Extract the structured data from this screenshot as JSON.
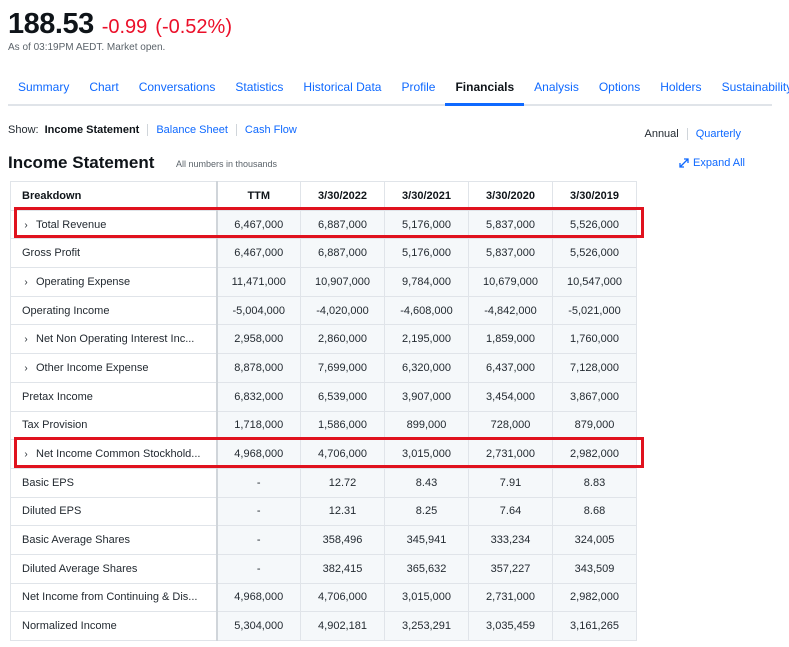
{
  "quote": {
    "price": "188.53",
    "change": "-0.99",
    "change_pct": "(-0.52%)",
    "as_of": "As of 03:19PM AEDT. Market open."
  },
  "tabs": [
    "Summary",
    "Chart",
    "Conversations",
    "Statistics",
    "Historical Data",
    "Profile",
    "Financials",
    "Analysis",
    "Options",
    "Holders",
    "Sustainability"
  ],
  "active_tab": "Financials",
  "show": {
    "label": "Show:",
    "options": [
      "Income Statement",
      "Balance Sheet",
      "Cash Flow"
    ]
  },
  "period": {
    "selected": "Annual",
    "other": "Quarterly"
  },
  "section": {
    "title": "Income Statement",
    "note": "All numbers in thousands",
    "expand_label": "Expand All"
  },
  "table": {
    "headers": [
      "Breakdown",
      "TTM",
      "3/30/2022",
      "3/30/2021",
      "3/30/2020",
      "3/30/2019"
    ],
    "rows": [
      {
        "label": "Total Revenue",
        "expandable": true,
        "values": [
          "6,467,000",
          "6,887,000",
          "5,176,000",
          "5,837,000",
          "5,526,000"
        ]
      },
      {
        "label": "Gross Profit",
        "expandable": false,
        "values": [
          "6,467,000",
          "6,887,000",
          "5,176,000",
          "5,837,000",
          "5,526,000"
        ]
      },
      {
        "label": "Operating Expense",
        "expandable": true,
        "values": [
          "11,471,000",
          "10,907,000",
          "9,784,000",
          "10,679,000",
          "10,547,000"
        ]
      },
      {
        "label": "Operating Income",
        "expandable": false,
        "values": [
          "-5,004,000",
          "-4,020,000",
          "-4,608,000",
          "-4,842,000",
          "-5,021,000"
        ]
      },
      {
        "label": "Net Non Operating Interest Inc...",
        "expandable": true,
        "values": [
          "2,958,000",
          "2,860,000",
          "2,195,000",
          "1,859,000",
          "1,760,000"
        ]
      },
      {
        "label": "Other Income Expense",
        "expandable": true,
        "values": [
          "8,878,000",
          "7,699,000",
          "6,320,000",
          "6,437,000",
          "7,128,000"
        ]
      },
      {
        "label": "Pretax Income",
        "expandable": false,
        "values": [
          "6,832,000",
          "6,539,000",
          "3,907,000",
          "3,454,000",
          "3,867,000"
        ]
      },
      {
        "label": "Tax Provision",
        "expandable": false,
        "values": [
          "1,718,000",
          "1,586,000",
          "899,000",
          "728,000",
          "879,000"
        ]
      },
      {
        "label": "Net Income Common Stockhold...",
        "expandable": true,
        "values": [
          "4,968,000",
          "4,706,000",
          "3,015,000",
          "2,731,000",
          "2,982,000"
        ]
      },
      {
        "label": "Basic EPS",
        "expandable": false,
        "values": [
          "-",
          "12.72",
          "8.43",
          "7.91",
          "8.83"
        ]
      },
      {
        "label": "Diluted EPS",
        "expandable": false,
        "values": [
          "-",
          "12.31",
          "8.25",
          "7.64",
          "8.68"
        ]
      },
      {
        "label": "Basic Average Shares",
        "expandable": false,
        "values": [
          "-",
          "358,496",
          "345,941",
          "333,234",
          "324,005"
        ]
      },
      {
        "label": "Diluted Average Shares",
        "expandable": false,
        "values": [
          "-",
          "382,415",
          "365,632",
          "357,227",
          "343,509"
        ]
      },
      {
        "label": "Net Income from Continuing & Dis...",
        "expandable": false,
        "values": [
          "4,968,000",
          "4,706,000",
          "3,015,000",
          "2,731,000",
          "2,982,000"
        ]
      },
      {
        "label": "Normalized Income",
        "expandable": false,
        "values": [
          "5,304,000",
          "4,902,181",
          "3,253,291",
          "3,035,459",
          "3,161,265"
        ]
      }
    ]
  },
  "colors": {
    "accent": "#0f69ff",
    "negative": "#eb0f29",
    "highlight": "#e0121e"
  }
}
